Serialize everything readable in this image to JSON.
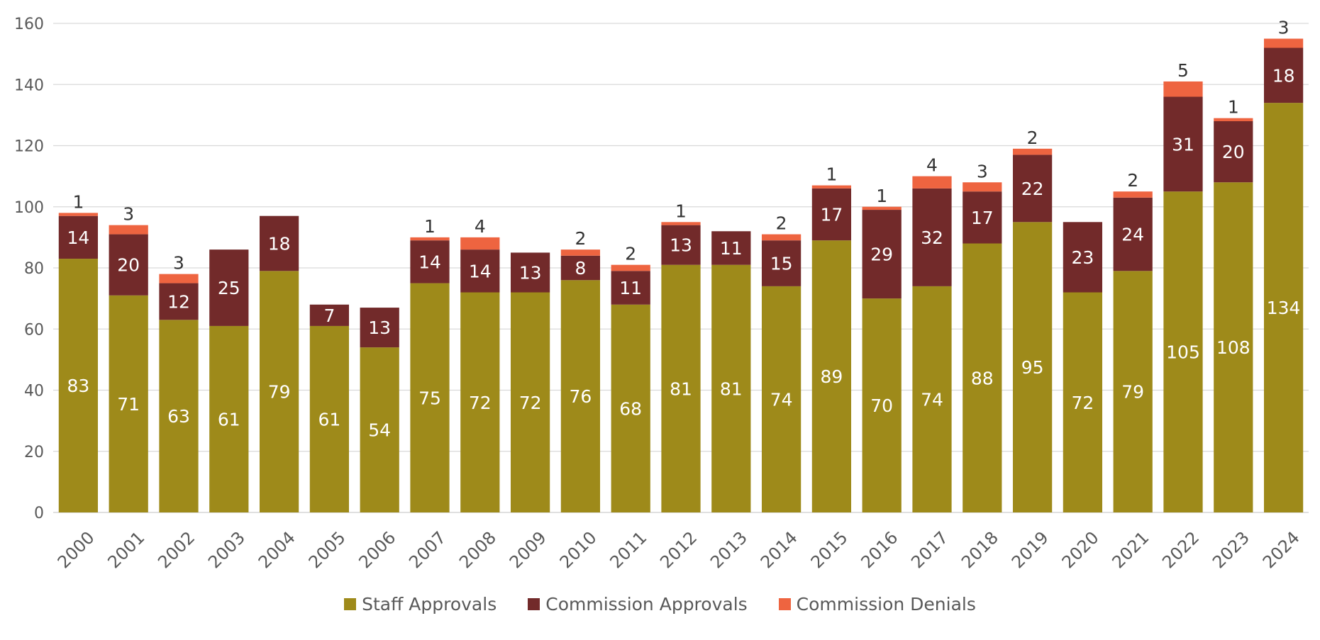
{
  "chart_data": {
    "type": "bar",
    "stacked": true,
    "categories": [
      "2000",
      "2001",
      "2002",
      "2003",
      "2004",
      "2005",
      "2006",
      "2007",
      "2008",
      "2009",
      "2010",
      "2011",
      "2012",
      "2013",
      "2014",
      "2015",
      "2016",
      "2017",
      "2018",
      "2019",
      "2020",
      "2021",
      "2022",
      "2023",
      "2024"
    ],
    "series": [
      {
        "name": "Staff Approvals",
        "color": "#9E8A1A",
        "values": [
          83,
          71,
          63,
          61,
          79,
          61,
          54,
          75,
          72,
          72,
          76,
          68,
          81,
          81,
          74,
          89,
          70,
          74,
          88,
          95,
          72,
          79,
          105,
          108,
          134
        ]
      },
      {
        "name": "Commission Approvals",
        "color": "#722A2A",
        "values": [
          14,
          20,
          12,
          25,
          18,
          7,
          13,
          14,
          14,
          13,
          8,
          11,
          13,
          11,
          15,
          17,
          29,
          32,
          17,
          22,
          23,
          24,
          31,
          20,
          18
        ]
      },
      {
        "name": "Commission Denials",
        "color": "#EE6440",
        "values": [
          1,
          3,
          3,
          0,
          0,
          0,
          0,
          1,
          4,
          0,
          2,
          2,
          1,
          0,
          2,
          1,
          1,
          4,
          3,
          2,
          0,
          2,
          5,
          1,
          3
        ]
      }
    ],
    "ylim": [
      0,
      160
    ],
    "yticks": [
      0,
      20,
      40,
      60,
      80,
      100,
      120,
      140,
      160
    ],
    "grid": true,
    "legend_position": "bottom"
  }
}
